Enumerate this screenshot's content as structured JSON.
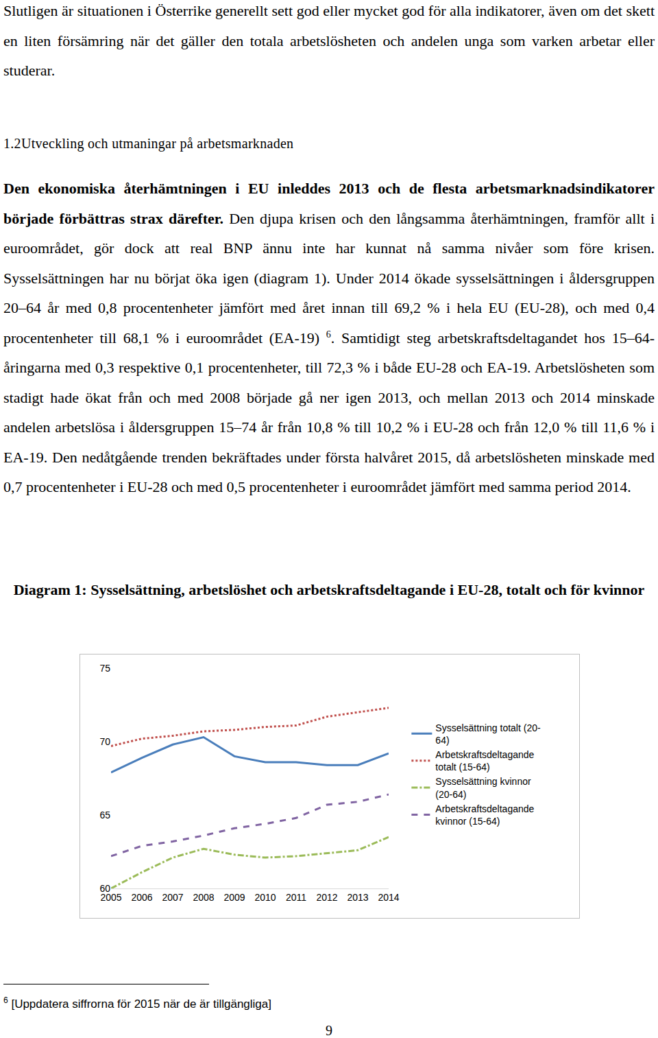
{
  "page": {
    "intro": "Slutligen är situationen i Österrike generellt sett god eller mycket god för alla indikatorer, även om det skett en liten försämring när det gäller den totala arbetslösheten och andelen unga som varken arbetar eller studerar.",
    "heading": "1.2Utveckling och utmaningar på arbetsmarknaden",
    "body": [
      {
        "text": "Den ekonomiska återhämtningen i EU inleddes 2013 och de flesta arbetsmarknadsindikatorer började förbättras strax därefter.",
        "bold": true
      },
      {
        "text": " Den djupa krisen och den långsamma återhämtningen, framför allt i euroområdet, gör dock att real BNP ännu inte har kunnat nå samma nivåer som före krisen. Sysselsättningen har nu börjat öka igen (diagram 1). Under 2014 ökade sysselsättningen i åldersgruppen 20–64 år med 0,8 procentenheter jämfört med året innan till 69,2 % i hela EU (EU-28), och med 0,4 procentenheter till 68,1 % i euroområdet (EA-19) "
      },
      {
        "text": "6",
        "sup": true
      },
      {
        "text": ". Samtidigt steg arbetskraftsdeltagandet hos 15–64-åringarna med 0,3 respektive 0,1 procentenheter, till 72,3 % i både EU-28 och EA-19. Arbetslösheten som stadigt hade ökat från och med 2008 började gå ner igen 2013, och mellan 2013 och 2014 minskade andelen arbetslösa i åldersgruppen 15–74 år från 10,8 % till 10,2 % i EU-28 och från 12,0 % till 11,6 % i EA-19. Den nedåtgående trenden bekräftades under första halvåret 2015, då arbetslösheten minskade med 0,7 procentenheter i EU-28 och med 0,5 procentenheter i euroområdet jämfört med samma period 2014."
      }
    ],
    "footnote": {
      "mark": "6",
      "text": "[Uppdatera siffrorna för 2015 när de är tillgängliga]"
    },
    "page_number": "9"
  },
  "chart_data": {
    "type": "line",
    "title": "Diagram 1: Sysselsättning, arbetslöshet och arbetskraftsdeltagande i EU-28, totalt och för kvinnor",
    "categories": [
      "2005",
      "2006",
      "2007",
      "2008",
      "2009",
      "2010",
      "2011",
      "2012",
      "2013",
      "2014"
    ],
    "series": [
      {
        "name": "Sysselsättning totalt (20-64)",
        "color": "#4a7ebb",
        "line_style": "solid",
        "values": [
          67.9,
          68.9,
          69.8,
          70.3,
          69.0,
          68.6,
          68.6,
          68.4,
          68.4,
          69.2
        ]
      },
      {
        "name": "Arbetskraftsdeltagande totalt (15-64)",
        "color": "#c0504d",
        "line_style": "dot",
        "values": [
          69.7,
          70.2,
          70.4,
          70.7,
          70.8,
          71.0,
          71.1,
          71.7,
          72.0,
          72.3
        ]
      },
      {
        "name": "Sysselsättning kvinnor (20-64)",
        "color": "#9bbb59",
        "line_style": "dashdot",
        "values": [
          60.0,
          61.1,
          62.1,
          62.7,
          62.3,
          62.1,
          62.2,
          62.4,
          62.6,
          63.5
        ]
      },
      {
        "name": "Arbetskraftsdeltagande kvinnor (15-64)",
        "color": "#8064a2",
        "line_style": "dash",
        "values": [
          62.2,
          62.9,
          63.2,
          63.6,
          64.1,
          64.4,
          64.8,
          65.7,
          65.9,
          66.4
        ]
      }
    ],
    "ylim": [
      60,
      75
    ],
    "yticks": [
      60,
      65,
      70,
      75
    ],
    "grid": false,
    "legend": "right"
  }
}
